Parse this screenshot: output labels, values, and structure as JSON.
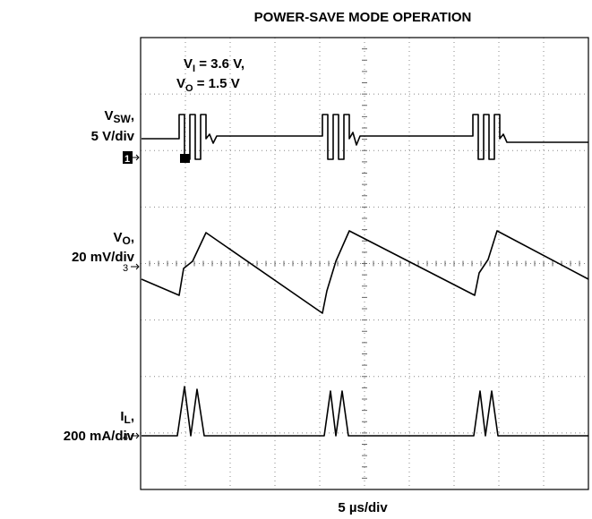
{
  "title": "POWER-SAVE MODE OPERATION",
  "annotation": [
    {
      "main": "V",
      "sub": "I",
      "rest": " = 3.6 V,"
    },
    {
      "main": "V",
      "sub": "O",
      "rest": " = 1.5 V"
    }
  ],
  "channels": [
    {
      "main": "V",
      "sub": "SW",
      "rest": ",",
      "scale": "5 V/div",
      "marker": "1"
    },
    {
      "main": "V",
      "sub": "O",
      "rest": ",",
      "scale": "20 mV/div",
      "marker": "3"
    },
    {
      "main": "I",
      "sub": "L",
      "rest": ",",
      "scale": "200 mA/div",
      "marker": "4"
    }
  ],
  "x_label": "5 µs/div"
}
